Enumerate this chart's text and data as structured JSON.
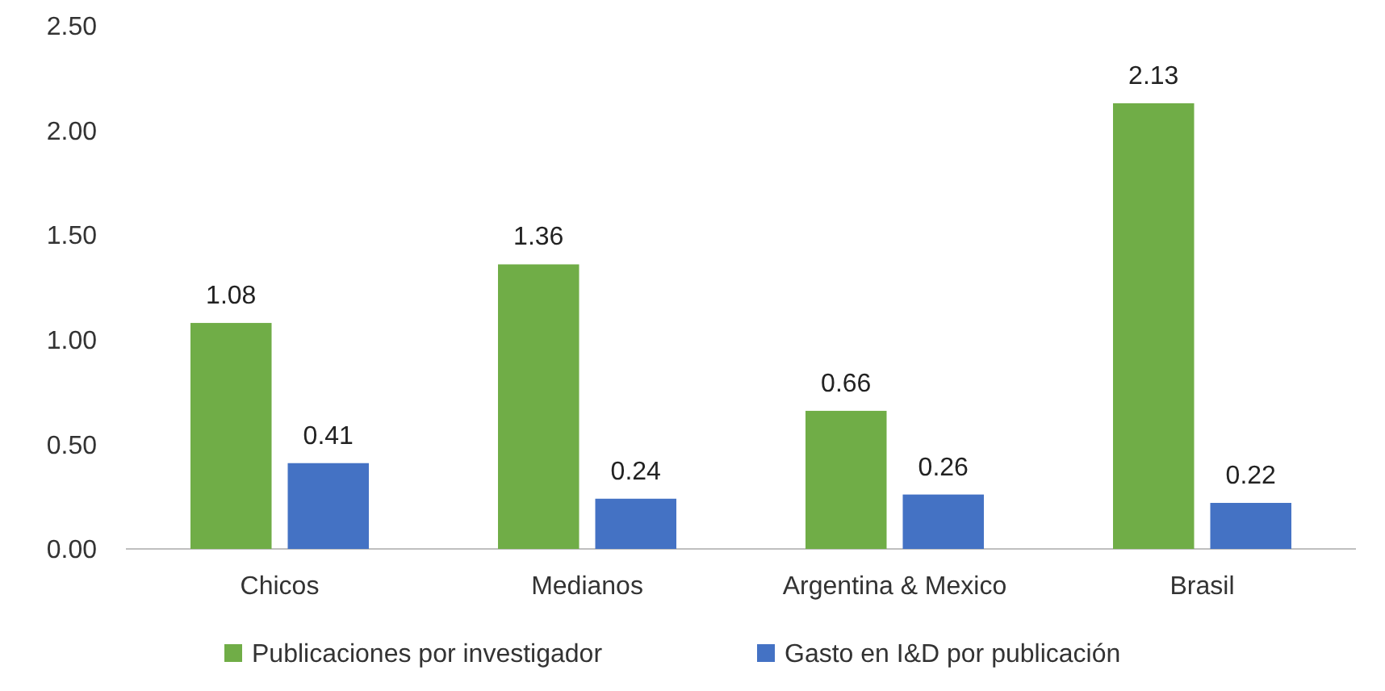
{
  "chart_data": {
    "type": "bar",
    "categories": [
      "Chicos",
      "Medianos",
      "Argentina & Mexico",
      "Brasil"
    ],
    "series": [
      {
        "name": "Publicaciones por investigador",
        "color": "#70ad47",
        "values": [
          1.08,
          1.36,
          0.66,
          2.13
        ]
      },
      {
        "name": "Gasto en I&D por publicación",
        "color": "#4472c4",
        "values": [
          0.41,
          0.24,
          0.26,
          0.22
        ]
      }
    ],
    "ylim": [
      0,
      2.5
    ],
    "yticks": [
      {
        "value": 0,
        "label": "0.00"
      },
      {
        "value": 0.5,
        "label": "0.50"
      },
      {
        "value": 1,
        "label": "1.00"
      },
      {
        "value": 1.5,
        "label": "1.50"
      },
      {
        "value": 2,
        "label": "2.00"
      },
      {
        "value": 2.5,
        "label": "2.50"
      }
    ],
    "grid": false,
    "data_labels": true,
    "legend": "bottom"
  }
}
